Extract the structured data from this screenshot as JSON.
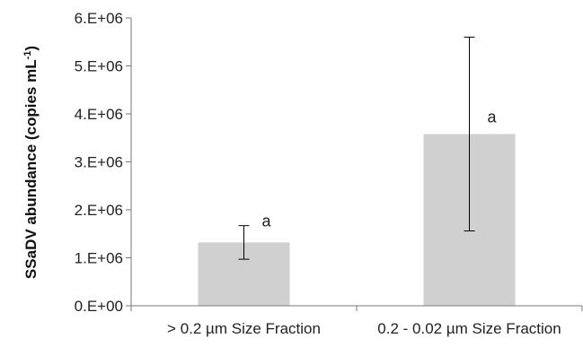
{
  "chart_data": {
    "type": "bar",
    "title": "",
    "xlabel": "",
    "ylabel": "SSaDV abundance (copies mL",
    "ylabel_superscript": "-1",
    "ylabel_suffix": ")",
    "categories": [
      "> 0.2 µm Size Fraction",
      "0.2 - 0.02 µm Size Fraction"
    ],
    "values": [
      1320000,
      3580000
    ],
    "error_bars": [
      {
        "lower": 970000,
        "upper": 1670000
      },
      {
        "lower": 1560000,
        "upper": 5600000
      }
    ],
    "significance_labels": [
      "a",
      "a"
    ],
    "ylim": [
      0,
      6000000
    ],
    "yticks": [
      0,
      1000000,
      2000000,
      3000000,
      4000000,
      5000000,
      6000000
    ],
    "ytick_labels": [
      "0.E+00",
      "1.E+06",
      "2.E+06",
      "3.E+06",
      "4.E+06",
      "5.E+06",
      "6.E+06"
    ],
    "grid": false,
    "legend": "none",
    "colors": {
      "bar": "#d0d0d0",
      "axis": "#7a7a7a",
      "error_bar": "#000000"
    }
  }
}
